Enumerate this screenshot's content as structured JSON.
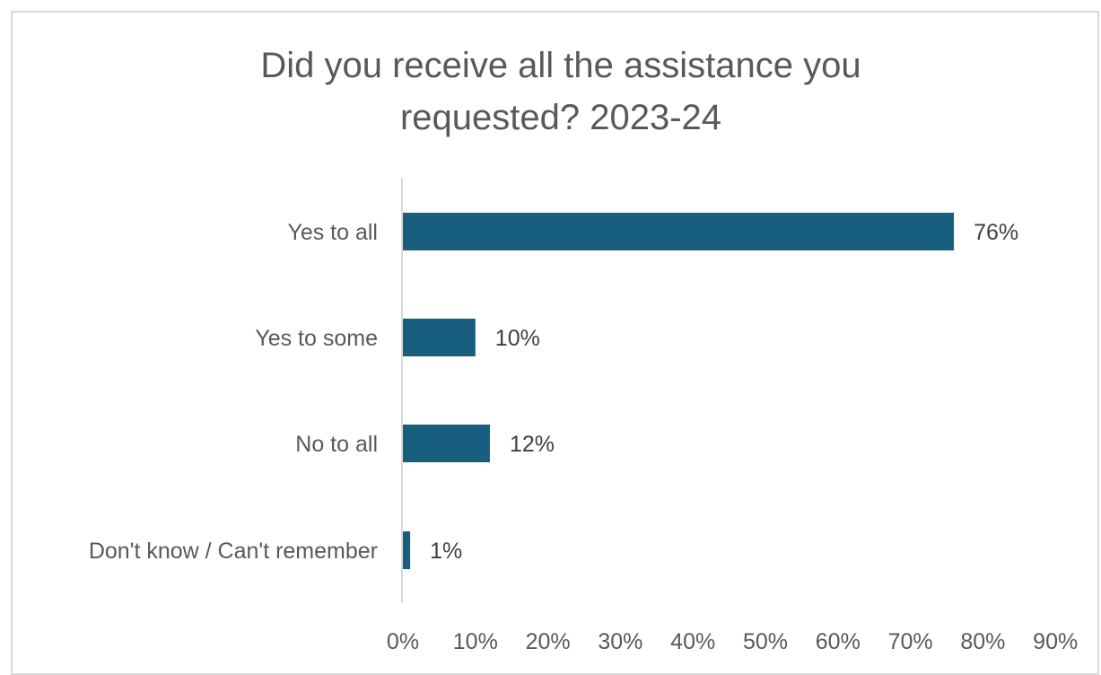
{
  "chart_data": {
    "type": "bar",
    "orientation": "horizontal",
    "title_lines": [
      "Did you receive all the assistance  you",
      "requested? 2023-24"
    ],
    "categories": [
      "Yes to all",
      "Yes to some",
      "No to all",
      "Don't know / Can't remember"
    ],
    "values": [
      76,
      10,
      12,
      1
    ],
    "value_labels": [
      "76%",
      "10%",
      "12%",
      "1%"
    ],
    "xlim": [
      0,
      90
    ],
    "x_ticks": [
      "0%",
      "10%",
      "20%",
      "30%",
      "40%",
      "50%",
      "60%",
      "70%",
      "80%",
      "90%"
    ],
    "grid": false,
    "legend": "none",
    "bar_color": "#175e7f",
    "axis_color": "#d9d9d9"
  }
}
